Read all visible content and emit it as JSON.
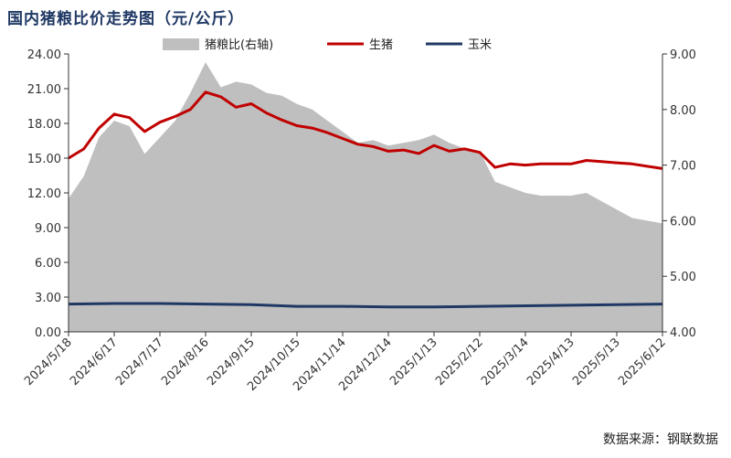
{
  "title": "国内猪粮比价走势图（元/公斤）",
  "source": "数据来源：钢联数据",
  "chart_data": {
    "type": "line+area",
    "title": "国内猪粮比价走势图（元/公斤）",
    "x_ticks": [
      "2024/5/18",
      "2024/6/17",
      "2024/7/17",
      "2024/8/16",
      "2024/9/15",
      "2024/10/15",
      "2024/11/14",
      "2024/12/14",
      "2025/1/13",
      "2025/2/12",
      "2025/3/14",
      "2025/4/13",
      "2025/5/13",
      "2025/6/12"
    ],
    "y_left": {
      "ylim": [
        0,
        24
      ],
      "ticks": [
        "0.00",
        "3.00",
        "6.00",
        "9.00",
        "12.00",
        "15.00",
        "18.00",
        "21.00",
        "24.00"
      ]
    },
    "y_right": {
      "ylim": [
        4,
        9
      ],
      "ticks": [
        "4.00",
        "5.00",
        "6.00",
        "7.00",
        "8.00",
        "9.00"
      ]
    },
    "legend": {
      "position": "top-right"
    },
    "colors": {
      "ratio": "#bfbfbf",
      "pig": "#c00000",
      "corn": "#1f3864"
    },
    "series": [
      {
        "name": "猪粮比(右轴)",
        "type": "area",
        "axis": "right",
        "points": [
          [
            "2024/5/18",
            6.4
          ],
          [
            "2024/5/28",
            6.8
          ],
          [
            "2024/6/7",
            7.5
          ],
          [
            "2024/6/17",
            7.8
          ],
          [
            "2024/6/27",
            7.7
          ],
          [
            "2024/7/7",
            7.2
          ],
          [
            "2024/7/17",
            7.5
          ],
          [
            "2024/7/27",
            7.8
          ],
          [
            "2024/8/6",
            8.3
          ],
          [
            "2024/8/16",
            8.85
          ],
          [
            "2024/8/26",
            8.4
          ],
          [
            "2024/9/5",
            8.5
          ],
          [
            "2024/9/15",
            8.45
          ],
          [
            "2024/9/25",
            8.3
          ],
          [
            "2024/10/5",
            8.25
          ],
          [
            "2024/10/15",
            8.1
          ],
          [
            "2024/10/25",
            8.0
          ],
          [
            "2024/11/4",
            7.8
          ],
          [
            "2024/11/14",
            7.6
          ],
          [
            "2024/11/24",
            7.4
          ],
          [
            "2024/12/4",
            7.45
          ],
          [
            "2024/12/14",
            7.35
          ],
          [
            "2024/12/24",
            7.4
          ],
          [
            "2025/1/3",
            7.45
          ],
          [
            "2025/1/13",
            7.55
          ],
          [
            "2025/1/23",
            7.4
          ],
          [
            "2025/2/2",
            7.3
          ],
          [
            "2025/2/12",
            7.25
          ],
          [
            "2025/2/22",
            6.7
          ],
          [
            "2025/3/4",
            6.6
          ],
          [
            "2025/3/14",
            6.5
          ],
          [
            "2025/3/24",
            6.45
          ],
          [
            "2025/4/3",
            6.45
          ],
          [
            "2025/4/13",
            6.45
          ],
          [
            "2025/4/23",
            6.5
          ],
          [
            "2025/5/3",
            6.35
          ],
          [
            "2025/5/13",
            6.2
          ],
          [
            "2025/5/23",
            6.05
          ],
          [
            "2025/6/2",
            6.0
          ],
          [
            "2025/6/12",
            5.95
          ]
        ]
      },
      {
        "name": "生猪",
        "type": "line",
        "axis": "left",
        "points": [
          [
            "2024/5/18",
            15.0
          ],
          [
            "2024/5/28",
            15.8
          ],
          [
            "2024/6/7",
            17.6
          ],
          [
            "2024/6/17",
            18.8
          ],
          [
            "2024/6/27",
            18.5
          ],
          [
            "2024/7/7",
            17.3
          ],
          [
            "2024/7/17",
            18.1
          ],
          [
            "2024/7/27",
            18.6
          ],
          [
            "2024/8/6",
            19.2
          ],
          [
            "2024/8/16",
            20.7
          ],
          [
            "2024/8/26",
            20.3
          ],
          [
            "2024/9/5",
            19.4
          ],
          [
            "2024/9/15",
            19.7
          ],
          [
            "2024/9/25",
            18.9
          ],
          [
            "2024/10/5",
            18.3
          ],
          [
            "2024/10/15",
            17.8
          ],
          [
            "2024/10/25",
            17.6
          ],
          [
            "2024/11/4",
            17.2
          ],
          [
            "2024/11/14",
            16.7
          ],
          [
            "2024/11/24",
            16.2
          ],
          [
            "2024/12/4",
            16.0
          ],
          [
            "2024/12/14",
            15.6
          ],
          [
            "2024/12/24",
            15.7
          ],
          [
            "2025/1/3",
            15.4
          ],
          [
            "2025/1/13",
            16.1
          ],
          [
            "2025/1/23",
            15.6
          ],
          [
            "2025/2/2",
            15.8
          ],
          [
            "2025/2/12",
            15.5
          ],
          [
            "2025/2/22",
            14.2
          ],
          [
            "2025/3/4",
            14.5
          ],
          [
            "2025/3/14",
            14.4
          ],
          [
            "2025/3/24",
            14.5
          ],
          [
            "2025/4/3",
            14.5
          ],
          [
            "2025/4/13",
            14.5
          ],
          [
            "2025/4/23",
            14.8
          ],
          [
            "2025/5/3",
            14.7
          ],
          [
            "2025/5/13",
            14.6
          ],
          [
            "2025/5/23",
            14.5
          ],
          [
            "2025/6/2",
            14.3
          ],
          [
            "2025/6/12",
            14.1
          ]
        ]
      },
      {
        "name": "玉米",
        "type": "line",
        "axis": "left",
        "points": [
          [
            "2024/5/18",
            2.4
          ],
          [
            "2024/6/17",
            2.45
          ],
          [
            "2024/7/17",
            2.45
          ],
          [
            "2024/8/16",
            2.4
          ],
          [
            "2024/9/15",
            2.35
          ],
          [
            "2024/10/15",
            2.2
          ],
          [
            "2024/11/14",
            2.2
          ],
          [
            "2024/12/14",
            2.15
          ],
          [
            "2025/1/13",
            2.15
          ],
          [
            "2025/2/12",
            2.2
          ],
          [
            "2025/3/14",
            2.25
          ],
          [
            "2025/4/13",
            2.3
          ],
          [
            "2025/5/13",
            2.35
          ],
          [
            "2025/6/12",
            2.4
          ]
        ]
      }
    ]
  }
}
